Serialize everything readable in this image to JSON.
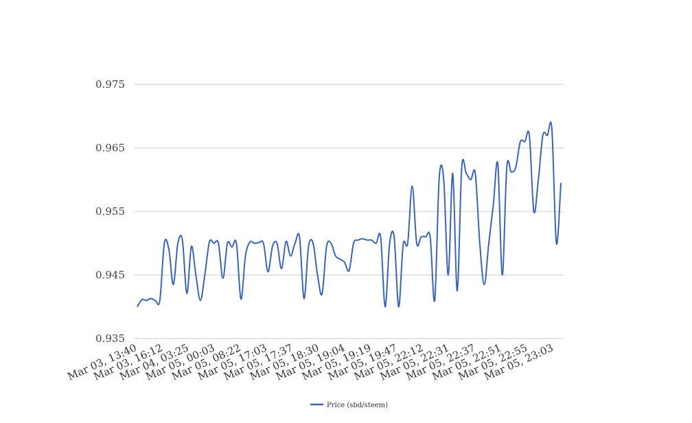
{
  "chart_data": {
    "type": "line",
    "title": "",
    "xlabel": "",
    "ylabel": "",
    "ylim": [
      0.935,
      0.975
    ],
    "yticks": [
      "0.935",
      "0.945",
      "0.955",
      "0.965",
      "0.975"
    ],
    "xtick_labels": [
      "Mar 03, 13:40",
      "Mar 03, 16:12",
      "Mar 04, 03:25",
      "Mar 05, 00:03",
      "Mar 05, 08:22",
      "Mar 05, 17:03",
      "Mar 05, 17:37",
      "Mar 05, 18:30",
      "Mar 05, 19:04",
      "Mar 05, 19:19",
      "Mar 05, 19:47",
      "Mar 05, 22:12",
      "Mar 05, 22:31",
      "Mar 05, 22:37",
      "Mar 05, 22:51",
      "Mar 05, 22:55",
      "Mar 05, 23:03"
    ],
    "grid": true,
    "legend_position": "bottom",
    "series": [
      {
        "name": "Price (sbd/steem)",
        "color": "#3a63b8",
        "values": [
          0.94,
          0.9411,
          0.941,
          0.9413,
          0.941,
          0.941,
          0.95,
          0.9491,
          0.9435,
          0.95,
          0.9505,
          0.9421,
          0.9495,
          0.945,
          0.941,
          0.9451,
          0.9502,
          0.95,
          0.95,
          0.9445,
          0.95,
          0.9494,
          0.95,
          0.9412,
          0.948,
          0.9502,
          0.95,
          0.9501,
          0.95,
          0.9455,
          0.9495,
          0.95,
          0.946,
          0.9503,
          0.948,
          0.95,
          0.951,
          0.9413,
          0.9495,
          0.95,
          0.945,
          0.942,
          0.9495,
          0.95,
          0.948,
          0.9475,
          0.947,
          0.9457,
          0.95,
          0.9505,
          0.9507,
          0.9505,
          0.9505,
          0.95,
          0.951,
          0.94,
          0.95,
          0.951,
          0.94,
          0.9498,
          0.95,
          0.959,
          0.95,
          0.951,
          0.951,
          0.951,
          0.941,
          0.9603,
          0.96,
          0.945,
          0.961,
          0.9425,
          0.962,
          0.961,
          0.96,
          0.961,
          0.95,
          0.9435,
          0.95,
          0.956,
          0.9625,
          0.945,
          0.962,
          0.9612,
          0.962,
          0.966,
          0.966,
          0.967,
          0.955,
          0.96,
          0.967,
          0.967,
          0.968,
          0.95,
          0.9595
        ]
      }
    ]
  }
}
